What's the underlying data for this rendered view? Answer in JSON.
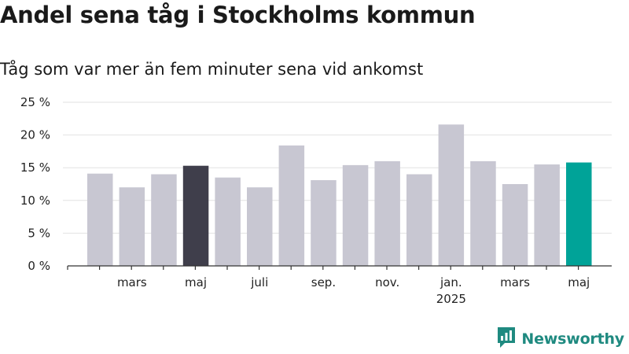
{
  "title": "Andel sena tåg i Stockholms kommun",
  "subtitle": "Tåg som var mer än fem minuter sena vid ankomst",
  "brand": {
    "name": "Newsworthy",
    "color": "#1f8a80",
    "icon": "newsworthy-chart-icon"
  },
  "colors": {
    "default_bar": "#c8c7d2",
    "highlight_prev_year": "#3f3e4b",
    "highlight_current": "#00a398",
    "grid": "#e2e2e2",
    "axis": "#333333"
  },
  "chart_data": {
    "type": "bar",
    "title": "Andel sena tåg i Stockholms kommun",
    "subtitle": "Tåg som var mer än fem minuter sena vid ankomst",
    "xlabel": "",
    "ylabel": "",
    "ylim": [
      0,
      25
    ],
    "yticks": [
      0,
      5,
      10,
      15,
      20,
      25
    ],
    "ytick_labels": [
      "0 %",
      "5 %",
      "10 %",
      "15 %",
      "20 %",
      "25 %"
    ],
    "grid": true,
    "categories": [
      "2024-02",
      "2024-03",
      "2024-04",
      "2024-05",
      "2024-06",
      "2024-07",
      "2024-08",
      "2024-09",
      "2024-10",
      "2024-11",
      "2024-12",
      "2025-01",
      "2025-02",
      "2025-03",
      "2025-04",
      "2025-05"
    ],
    "values": [
      14.1,
      12.0,
      14.0,
      15.3,
      13.5,
      12.0,
      18.4,
      13.1,
      15.4,
      16.0,
      14.0,
      21.6,
      16.0,
      12.5,
      15.5,
      15.8
    ],
    "highlight": {
      "2024-05": "highlight_prev_year",
      "2025-05": "highlight_current"
    },
    "x_tick_labels": [
      {
        "category": "2024-03",
        "label": "mars",
        "sublabel": ""
      },
      {
        "category": "2024-05",
        "label": "maj",
        "sublabel": ""
      },
      {
        "category": "2024-07",
        "label": "juli",
        "sublabel": ""
      },
      {
        "category": "2024-09",
        "label": "sep.",
        "sublabel": ""
      },
      {
        "category": "2024-11",
        "label": "nov.",
        "sublabel": ""
      },
      {
        "category": "2025-01",
        "label": "jan.",
        "sublabel": "2025"
      },
      {
        "category": "2025-03",
        "label": "mars",
        "sublabel": ""
      },
      {
        "category": "2025-05",
        "label": "maj",
        "sublabel": ""
      }
    ]
  }
}
